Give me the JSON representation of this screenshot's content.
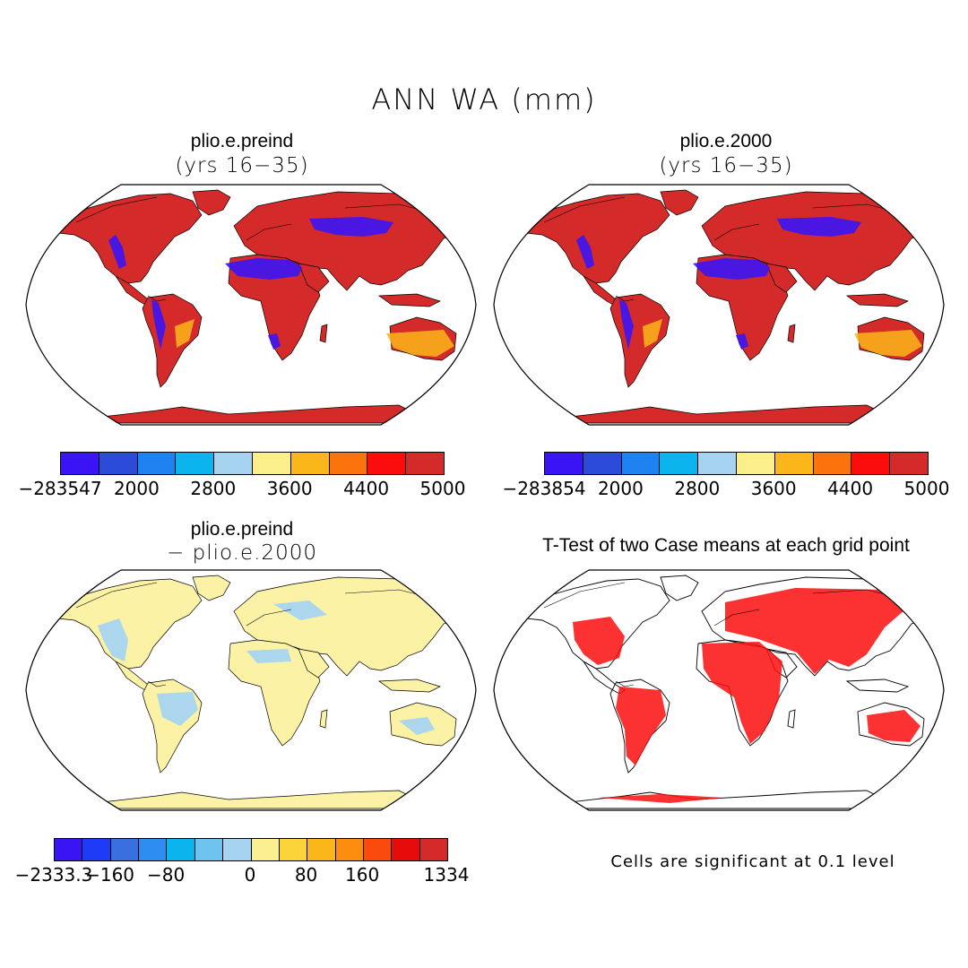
{
  "figure_title": "ANN WA (mm)",
  "panels": [
    {
      "title": "plio.e.preind",
      "subtitle": "(yrs 16−35)",
      "kind": "field-abs"
    },
    {
      "title": "plio.e.2000",
      "subtitle": "(yrs 16−35)",
      "kind": "field-abs"
    },
    {
      "title": "plio.e.preind",
      "subtitle": "− plio.e.2000",
      "kind": "field-diff"
    },
    {
      "title": "T-Test of two Case means at each grid point",
      "subtitle": "",
      "kind": "ttest"
    }
  ],
  "colorbars": {
    "abs_left": {
      "colors": [
        "#3b14f5",
        "#2c4bd9",
        "#1e83f0",
        "#0cb4ee",
        "#a6d4f0",
        "#fbef8c",
        "#fbb61a",
        "#fb730d",
        "#fb0d0d",
        "#d42a2a"
      ],
      "labels": [
        "−283547",
        "2000",
        "2800",
        "3600",
        "4400",
        "5000"
      ]
    },
    "abs_right": {
      "colors": [
        "#3b14f5",
        "#2c4bd9",
        "#1e83f0",
        "#0cb4ee",
        "#a6d4f0",
        "#fbef8c",
        "#fbb61a",
        "#fb730d",
        "#fb0d0d",
        "#d42a2a"
      ],
      "labels": [
        "−283854",
        "2000",
        "2800",
        "3600",
        "4400",
        "5000"
      ]
    },
    "diff": {
      "colors": [
        "#3b14f5",
        "#1e3cf5",
        "#3a6fe0",
        "#2c8cf0",
        "#0cb4ee",
        "#6ec4ee",
        "#a6d4f0",
        "#fbf08f",
        "#fbd43a",
        "#fbb61a",
        "#fb8c0d",
        "#fb4a0d",
        "#e60c0c",
        "#d42a2a"
      ],
      "labels": [
        "−2333.3",
        "−160",
        "−80",
        "0",
        "80",
        "160",
        "1334"
      ]
    }
  },
  "ttest_note": "Cells are significant at 0.1 level",
  "fill_colors": {
    "abs_land": "#d42a2a",
    "diff_land": "#fbf2a6",
    "ttest": "#fb0d0d"
  }
}
